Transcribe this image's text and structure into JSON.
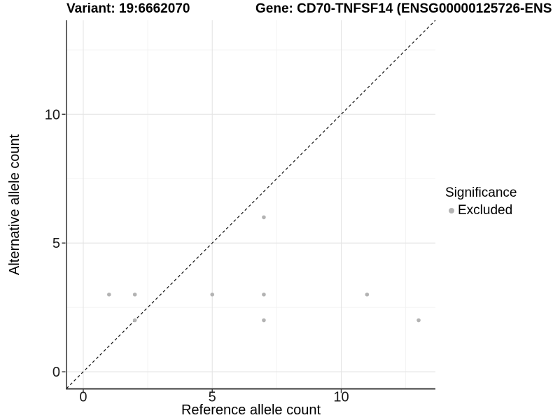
{
  "chart_data": {
    "type": "scatter",
    "title_left": "Variant: 19:6662070",
    "title_right": "Gene: CD70-TNFSF14 (ENSG00000125726-ENS",
    "xlabel": "Reference allele count",
    "ylabel": "Alternative allele count",
    "xlim": [
      -0.65,
      13.65
    ],
    "ylim": [
      -0.65,
      13.65
    ],
    "x_major_ticks": [
      0,
      5,
      10
    ],
    "y_major_ticks": [
      0,
      5,
      10
    ],
    "x_minor_gridlines": [
      2.5,
      7.5,
      12.5
    ],
    "y_minor_gridlines": [
      2.5,
      7.5,
      12.5
    ],
    "grid": "major+minor",
    "reference_line": {
      "type": "identity y=x",
      "style": "dashed",
      "color": "#111111"
    },
    "series": [
      {
        "name": "Excluded",
        "color": "#b3b3b3",
        "points": [
          {
            "x": 1,
            "y": 3
          },
          {
            "x": 2,
            "y": 2
          },
          {
            "x": 2,
            "y": 3
          },
          {
            "x": 5,
            "y": 3
          },
          {
            "x": 7,
            "y": 2
          },
          {
            "x": 7,
            "y": 3
          },
          {
            "x": 7,
            "y": 6
          },
          {
            "x": 11,
            "y": 3
          },
          {
            "x": 13,
            "y": 2
          }
        ]
      }
    ],
    "legend": {
      "title": "Significance",
      "position": "right",
      "entries": [
        {
          "label": "Excluded",
          "color": "#b3b3b3"
        }
      ]
    }
  },
  "style": {
    "background": "#ffffff",
    "major_grid_color": "#e4e4e4",
    "minor_grid_color": "#f2f2f2",
    "axis_line_color": "#3d3d3d",
    "tick_color": "#333333",
    "tick_label_color": "#1a1a1a",
    "point_color": "#b3b3b3",
    "reference_line_color": "#111111"
  }
}
